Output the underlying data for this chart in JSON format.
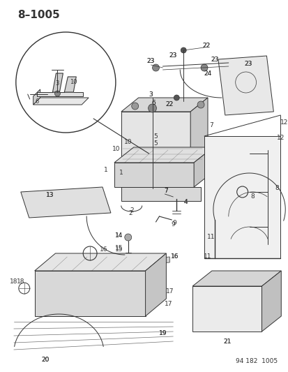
{
  "title": "8–1005",
  "footer": "94 182  1005",
  "bg_color": "#ffffff",
  "title_fontsize": 11,
  "footer_fontsize": 7,
  "label_fontsize": 7,
  "fig_width": 4.14,
  "fig_height": 5.33,
  "dpi": 100,
  "line_color": "#333333",
  "sketch_color": "#555555",
  "light_gray": "#cccccc",
  "mid_gray": "#aaaaaa"
}
